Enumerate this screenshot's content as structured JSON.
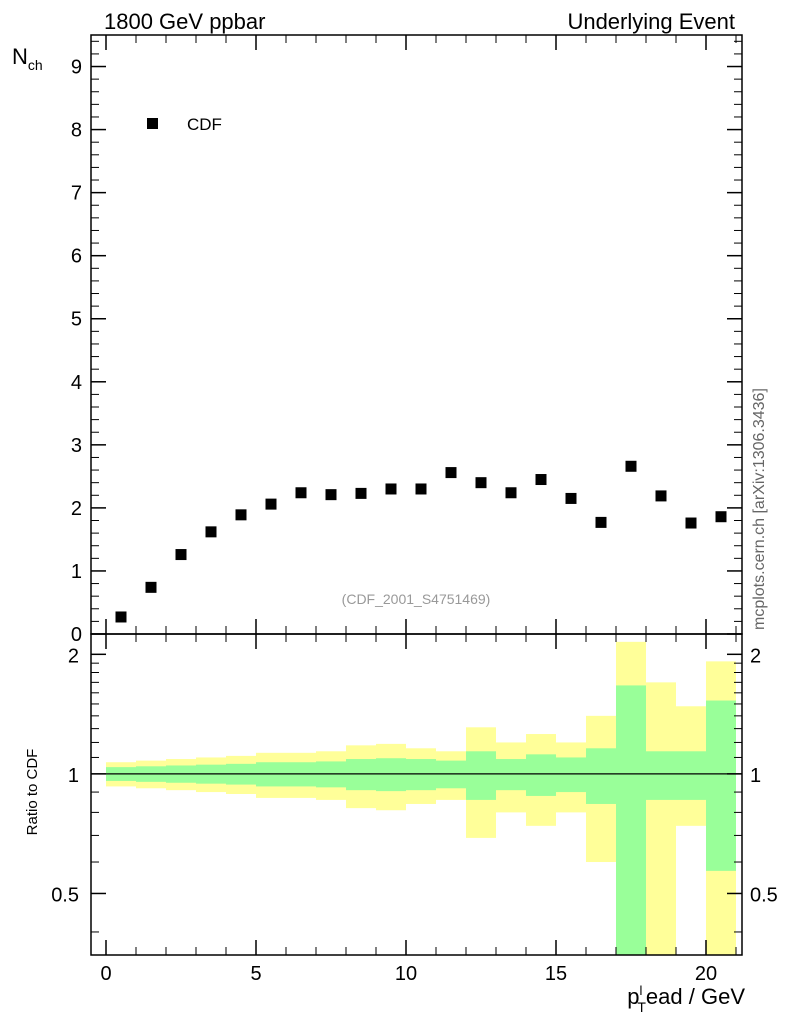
{
  "header": {
    "left_title": "1800 GeV ppbar",
    "right_title": "Underlying Event"
  },
  "side_label": "mcplots.cern.ch [arXiv:1306.3436]",
  "chart_data": [
    {
      "type": "scatter",
      "ylabel_main": "N",
      "ylabel_sub": "ch",
      "watermark": "(CDF_2001_S4751469)",
      "legend": {
        "label": "CDF",
        "placement": "top-left",
        "color": "#000000"
      },
      "xlim": [
        -0.5,
        21.2
      ],
      "ylim": [
        0,
        9.5
      ],
      "y_ticks": [
        0,
        1,
        2,
        3,
        4,
        5,
        6,
        7,
        8,
        9
      ],
      "series": [
        {
          "name": "CDF",
          "x": [
            0.5,
            1.5,
            2.5,
            3.5,
            4.5,
            5.5,
            6.5,
            7.5,
            8.5,
            9.5,
            10.5,
            11.5,
            12.5,
            13.5,
            14.5,
            15.5,
            16.5,
            17.5,
            18.5,
            19.5,
            20.5
          ],
          "y": [
            0.27,
            0.74,
            1.26,
            1.62,
            1.89,
            2.06,
            2.24,
            2.21,
            2.23,
            2.3,
            2.3,
            2.56,
            2.4,
            2.24,
            2.45,
            2.15,
            1.77,
            2.66,
            2.19,
            1.76,
            1.86
          ]
        }
      ]
    },
    {
      "type": "area",
      "ylabel": "Ratio to CDF",
      "xlabel_main": "p",
      "xlabel_sub": "T",
      "xlabel_sup": "l",
      "xlabel_rest": "ead / GeV",
      "xlim": [
        -0.5,
        21.2
      ],
      "ylim": [
        0.35,
        2.25
      ],
      "y_ticks": [
        0.5,
        1,
        2
      ],
      "x_ticks": [
        0,
        5,
        10,
        15,
        20
      ],
      "reference_line": 1,
      "colors": {
        "inner": "#99ff99",
        "outer": "#ffff99",
        "line": "#000000"
      },
      "bins": [
        {
          "lo": 0,
          "hi": 1,
          "inner": [
            0.96,
            1.04
          ],
          "outer": [
            0.93,
            1.07
          ]
        },
        {
          "lo": 1,
          "hi": 2,
          "inner": [
            0.955,
            1.045
          ],
          "outer": [
            0.92,
            1.08
          ]
        },
        {
          "lo": 2,
          "hi": 3,
          "inner": [
            0.95,
            1.05
          ],
          "outer": [
            0.91,
            1.09
          ]
        },
        {
          "lo": 3,
          "hi": 4,
          "inner": [
            0.945,
            1.055
          ],
          "outer": [
            0.9,
            1.1
          ]
        },
        {
          "lo": 4,
          "hi": 5,
          "inner": [
            0.94,
            1.06
          ],
          "outer": [
            0.89,
            1.11
          ]
        },
        {
          "lo": 5,
          "hi": 6,
          "inner": [
            0.93,
            1.07
          ],
          "outer": [
            0.87,
            1.13
          ]
        },
        {
          "lo": 6,
          "hi": 7,
          "inner": [
            0.93,
            1.07
          ],
          "outer": [
            0.87,
            1.13
          ]
        },
        {
          "lo": 7,
          "hi": 8,
          "inner": [
            0.925,
            1.075
          ],
          "outer": [
            0.86,
            1.14
          ]
        },
        {
          "lo": 8,
          "hi": 9,
          "inner": [
            0.91,
            1.09
          ],
          "outer": [
            0.82,
            1.18
          ]
        },
        {
          "lo": 9,
          "hi": 10,
          "inner": [
            0.905,
            1.095
          ],
          "outer": [
            0.81,
            1.19
          ]
        },
        {
          "lo": 10,
          "hi": 11,
          "inner": [
            0.91,
            1.09
          ],
          "outer": [
            0.84,
            1.16
          ]
        },
        {
          "lo": 11,
          "hi": 12,
          "inner": [
            0.92,
            1.08
          ],
          "outer": [
            0.86,
            1.14
          ]
        },
        {
          "lo": 12,
          "hi": 13,
          "inner": [
            0.86,
            1.14
          ],
          "outer": [
            0.69,
            1.31
          ]
        },
        {
          "lo": 13,
          "hi": 14,
          "inner": [
            0.91,
            1.09
          ],
          "outer": [
            0.8,
            1.2
          ]
        },
        {
          "lo": 14,
          "hi": 15,
          "inner": [
            0.88,
            1.12
          ],
          "outer": [
            0.74,
            1.26
          ]
        },
        {
          "lo": 15,
          "hi": 16,
          "inner": [
            0.9,
            1.1
          ],
          "outer": [
            0.8,
            1.2
          ]
        },
        {
          "lo": 16,
          "hi": 17,
          "inner": [
            0.84,
            1.16
          ],
          "outer": [
            0.6,
            1.4
          ]
        },
        {
          "lo": 17,
          "hi": 18,
          "inner": [
            0.35,
            1.67
          ],
          "outer": [
            0.35,
            2.15
          ]
        },
        {
          "lo": 18,
          "hi": 19,
          "inner": [
            0.86,
            1.14
          ],
          "outer": [
            0.35,
            1.7
          ]
        },
        {
          "lo": 19,
          "hi": 20,
          "inner": [
            0.86,
            1.14
          ],
          "outer": [
            0.74,
            1.48
          ]
        },
        {
          "lo": 20,
          "hi": 21,
          "inner": [
            0.57,
            1.53
          ],
          "outer": [
            0.35,
            1.92
          ]
        }
      ]
    }
  ]
}
